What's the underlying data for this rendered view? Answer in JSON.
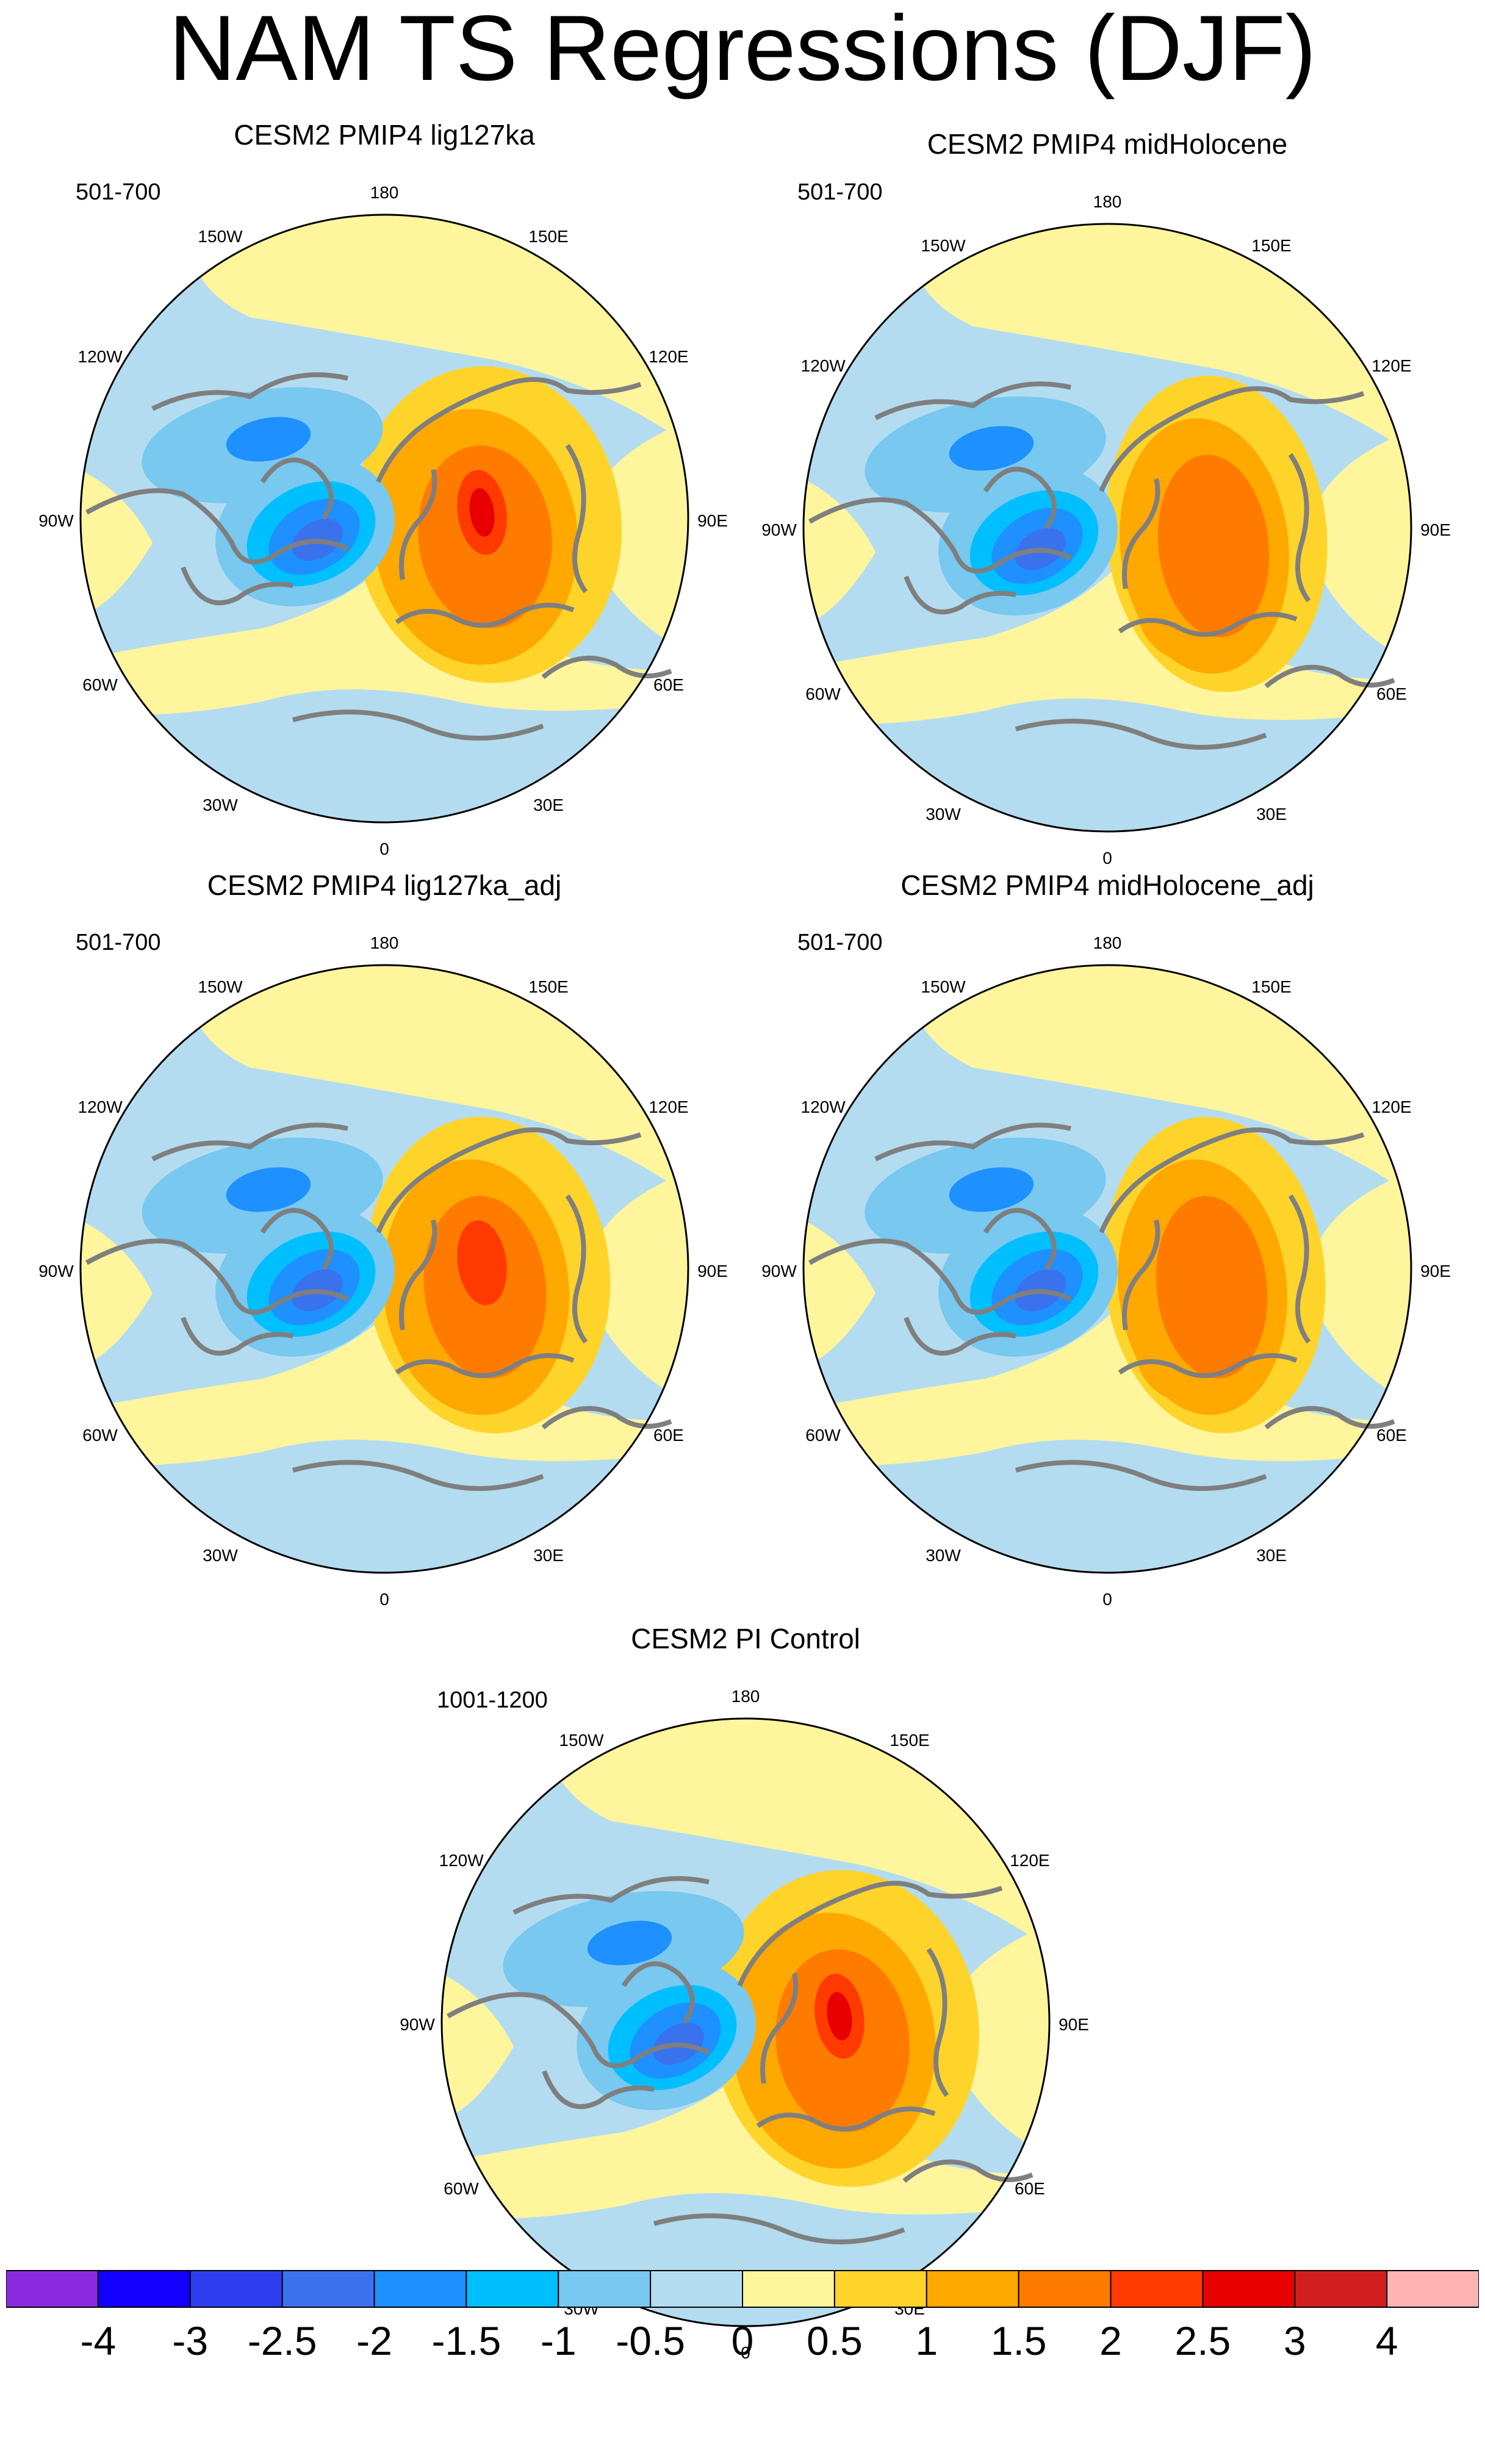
{
  "title": "NAM TS Regressions (DJF)",
  "colors": {
    "coast": "#7f7f7f",
    "lon_label": "#000000"
  },
  "panels": [
    {
      "id": "lig127ka",
      "title": "CESM2 PMIP4 lig127ka",
      "period": "501-700",
      "intensity": 1.15,
      "europe_shift": 0.0
    },
    {
      "id": "midHolocene",
      "title": "CESM2 PMIP4 midHolocene",
      "period": "501-700",
      "intensity": 0.95,
      "europe_shift": 0.15
    },
    {
      "id": "lig127ka_adj",
      "title": "CESM2 PMIP4 lig127ka_adj",
      "period": "501-700",
      "intensity": 1.05,
      "europe_shift": 0.0
    },
    {
      "id": "midHolocene_adj",
      "title": "CESM2 PMIP4 midHolocene_adj",
      "period": "501-700",
      "intensity": 0.95,
      "europe_shift": 0.1
    },
    {
      "id": "pi_control",
      "title": "CESM2 PI Control",
      "period": "1001-1200",
      "intensity": 1.2,
      "europe_shift": -0.1
    }
  ],
  "longitude_labels": [
    "180",
    "150E",
    "120E",
    "90E",
    "60E",
    "30E",
    "0",
    "30W",
    "60W",
    "90W",
    "120W",
    "150W"
  ],
  "colorbar": {
    "levels": [
      "-4",
      "-3",
      "-2.5",
      "-2",
      "-1.5",
      "-1",
      "-0.5",
      "0",
      "0.5",
      "1",
      "1.5",
      "2",
      "2.5",
      "3",
      "4"
    ],
    "colors": [
      "#8a2be2",
      "#1400ff",
      "#2d3ef0",
      "#3a72ee",
      "#1e90ff",
      "#00bfff",
      "#78c8f0",
      "#b4dcf0",
      "#fff59d",
      "#ffd42a",
      "#ffa800",
      "#ff7b00",
      "#ff3a00",
      "#e80000",
      "#d21e1e",
      "#ffb4b4"
    ]
  }
}
